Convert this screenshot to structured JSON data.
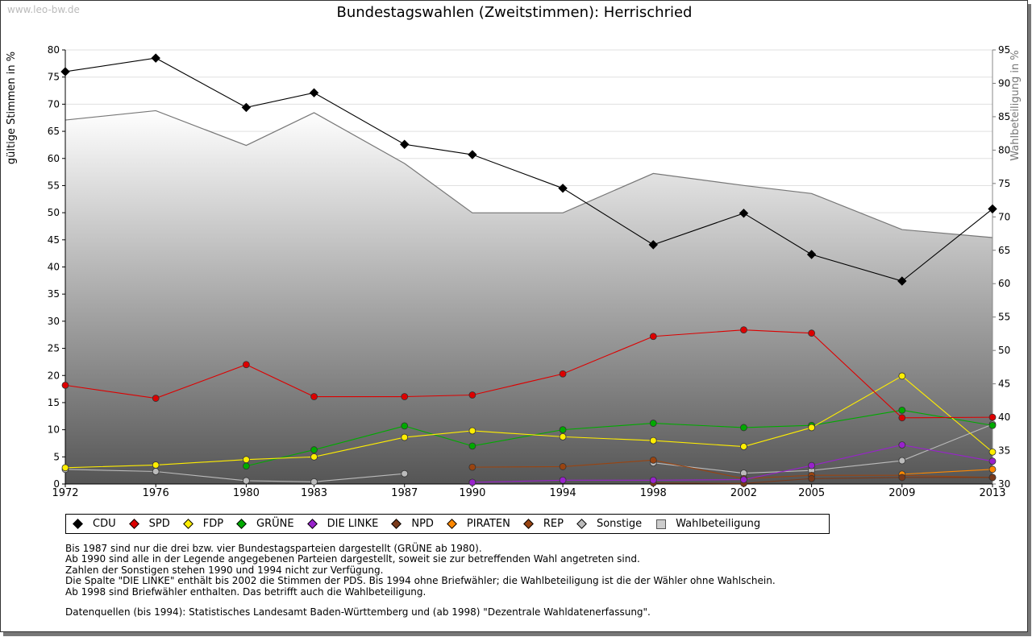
{
  "watermark": "www.leo-bw.de",
  "title": "Bundestagswahlen (Zweitstimmen): Herrischried",
  "legend": [
    {
      "label": "CDU",
      "color": "#000000"
    },
    {
      "label": "SPD",
      "color": "#dd0000"
    },
    {
      "label": "FDP",
      "color": "#ffee00"
    },
    {
      "label": "GRÜNE",
      "color": "#00aa00"
    },
    {
      "label": "DIE LINKE",
      "color": "#9922cc"
    },
    {
      "label": "NPD",
      "color": "#7a3a1a"
    },
    {
      "label": "PIRATEN",
      "color": "#ff8800"
    },
    {
      "label": "REP",
      "color": "#994411"
    },
    {
      "label": "Sonstige",
      "color": "#bbbbbb"
    },
    {
      "label": "Wahlbeteiligung",
      "color": "#cccccc"
    }
  ],
  "notes": [
    "Bis 1987 sind nur die drei bzw. vier Bundestagsparteien dargestellt (GRÜNE ab 1980).",
    "Ab 1990 sind alle in der Legende angegebenen Parteien dargestellt, soweit sie zur betreffenden Wahl angetreten sind.",
    "Zahlen der Sonstigen stehen 1990 und 1994 nicht zur Verfügung.",
    "Die Spalte \"DIE LINKE\" enthält bis 2002 die Stimmen der PDS. Bis 1994 ohne Briefwähler; die Wahlbeteiligung ist die der Wähler ohne Wahlschein.",
    "Ab 1998 sind Briefwähler enthalten. Das betrifft auch die Wahlbeteiligung."
  ],
  "source": "Datenquellen (bis 1994): Statistisches Landesamt Baden-Württemberg und (ab 1998) \"Dezentrale Wahldatenerfassung\".",
  "chart_data": {
    "type": "line",
    "title": "Bundestagswahlen (Zweitstimmen): Herrischried",
    "ylabel": "gültige Stimmen in %",
    "y2label": "Wahlbeteiligung in %",
    "x": [
      1972,
      1976,
      1980,
      1983,
      1987,
      1990,
      1994,
      1998,
      2002,
      2005,
      2009,
      2013
    ],
    "ylim": [
      0,
      80
    ],
    "y2lim": [
      30,
      95
    ],
    "yticks": [
      "0",
      "5",
      "10",
      "15",
      "20",
      "25",
      "30",
      "35",
      "40",
      "45",
      "50",
      "55",
      "60",
      "65",
      "70",
      "75",
      "80"
    ],
    "y2ticks": [
      "30",
      "35",
      "40",
      "45",
      "50",
      "55",
      "60",
      "65",
      "70",
      "75",
      "80",
      "85",
      "90",
      "95"
    ],
    "xticks": [
      "1972",
      "1976",
      "1980",
      "1983",
      "1987",
      "1990",
      "1994",
      "1998",
      "2002",
      "2005",
      "2009",
      "2013"
    ],
    "grid": true,
    "legend_position": "bottom",
    "turnout": {
      "name": "Wahlbeteiligung",
      "axis": "right",
      "values": [
        84.5,
        85.9,
        80.7,
        85.6,
        78.0,
        70.6,
        70.6,
        76.5,
        74.7,
        73.5,
        68.1,
        66.9
      ]
    },
    "series": [
      {
        "name": "CDU",
        "color": "#000000",
        "values": [
          76.0,
          78.5,
          69.4,
          72.1,
          62.6,
          60.7,
          54.5,
          44.1,
          49.9,
          42.3,
          37.4,
          50.7
        ]
      },
      {
        "name": "SPD",
        "color": "#dd0000",
        "values": [
          18.2,
          15.8,
          22.0,
          16.1,
          16.1,
          16.4,
          20.3,
          27.2,
          28.4,
          27.8,
          12.2,
          12.3
        ]
      },
      {
        "name": "FDP",
        "color": "#ffee00",
        "values": [
          3.0,
          3.5,
          4.5,
          5.0,
          8.6,
          9.8,
          8.7,
          8.0,
          6.9,
          10.4,
          19.9,
          5.9
        ]
      },
      {
        "name": "GRÜNE",
        "color": "#00aa00",
        "values": [
          null,
          null,
          3.3,
          6.3,
          10.7,
          7.0,
          10.0,
          11.2,
          10.4,
          10.8,
          13.6,
          10.8
        ]
      },
      {
        "name": "DIE LINKE",
        "color": "#9922cc",
        "values": [
          null,
          null,
          null,
          null,
          null,
          0.3,
          0.7,
          0.7,
          0.8,
          3.4,
          7.2,
          4.2
        ]
      },
      {
        "name": "NPD",
        "color": "#7a3a1a",
        "values": [
          null,
          null,
          null,
          null,
          null,
          0.3,
          null,
          0.2,
          0.1,
          1.0,
          1.2,
          1.2
        ]
      },
      {
        "name": "PIRATEN",
        "color": "#ff8800",
        "values": [
          null,
          null,
          null,
          null,
          null,
          null,
          null,
          null,
          null,
          null,
          1.8,
          2.7
        ]
      },
      {
        "name": "REP",
        "color": "#994411",
        "values": [
          null,
          null,
          null,
          null,
          null,
          3.1,
          3.2,
          4.4,
          1.0,
          1.6,
          1.6,
          1.2
        ]
      },
      {
        "name": "Sonstige",
        "color": "#bbbbbb",
        "values": [
          2.7,
          2.3,
          0.6,
          0.4,
          1.9,
          null,
          null,
          3.9,
          2.0,
          2.5,
          4.3,
          11.0
        ]
      }
    ]
  }
}
